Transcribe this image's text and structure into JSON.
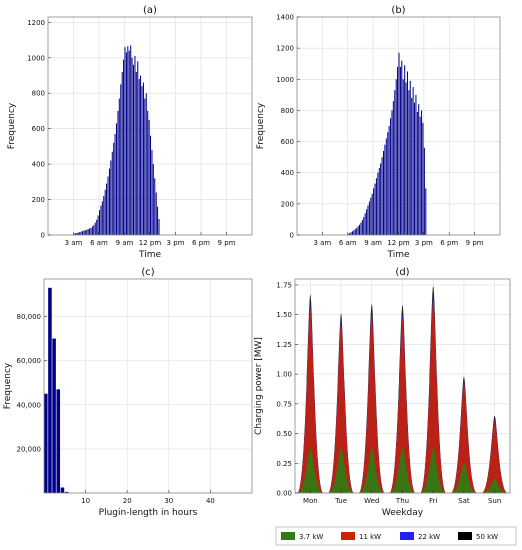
{
  "chart_data": [
    {
      "id": "a",
      "type": "bar",
      "title": "(a)",
      "xlabel": "Time",
      "ylabel": "Frequency",
      "ylim": [
        0,
        1230
      ],
      "yticks": [
        0,
        200,
        400,
        600,
        800,
        1000,
        1200
      ],
      "xlim": [
        0,
        24
      ],
      "xticks": [
        3,
        6,
        9,
        12,
        15,
        18,
        21
      ],
      "xticklabels": [
        "3 am",
        "6 am",
        "9 am",
        "12 pm",
        "3 pm",
        "6 pm",
        "9 pm"
      ],
      "grid": true,
      "bar_color": "#00008b",
      "bin_width_hours": 0.1667,
      "bins": [
        [
          3.0,
          8
        ],
        [
          3.17,
          10
        ],
        [
          3.33,
          12
        ],
        [
          3.5,
          14
        ],
        [
          3.67,
          16
        ],
        [
          3.83,
          19
        ],
        [
          4.0,
          22
        ],
        [
          4.17,
          25
        ],
        [
          4.33,
          27
        ],
        [
          4.5,
          30
        ],
        [
          4.67,
          33
        ],
        [
          4.83,
          37
        ],
        [
          5.0,
          40
        ],
        [
          5.17,
          48
        ],
        [
          5.33,
          56
        ],
        [
          5.5,
          70
        ],
        [
          5.67,
          86
        ],
        [
          5.83,
          110
        ],
        [
          6.0,
          140
        ],
        [
          6.17,
          165
        ],
        [
          6.33,
          190
        ],
        [
          6.5,
          220
        ],
        [
          6.67,
          255
        ],
        [
          6.83,
          290
        ],
        [
          7.0,
          330
        ],
        [
          7.17,
          375
        ],
        [
          7.33,
          420
        ],
        [
          7.5,
          470
        ],
        [
          7.67,
          520
        ],
        [
          7.83,
          570
        ],
        [
          8.0,
          630
        ],
        [
          8.17,
          700
        ],
        [
          8.33,
          770
        ],
        [
          8.5,
          850
        ],
        [
          8.67,
          920
        ],
        [
          8.83,
          990
        ],
        [
          9.0,
          1060
        ],
        [
          9.17,
          1030
        ],
        [
          9.33,
          1065
        ],
        [
          9.5,
          1040
        ],
        [
          9.67,
          1070
        ],
        [
          9.83,
          1000
        ],
        [
          10.0,
          960
        ],
        [
          10.17,
          1010
        ],
        [
          10.33,
          920
        ],
        [
          10.5,
          980
        ],
        [
          10.67,
          880
        ],
        [
          10.83,
          900
        ],
        [
          11.0,
          840
        ],
        [
          11.17,
          860
        ],
        [
          11.33,
          770
        ],
        [
          11.5,
          800
        ],
        [
          11.67,
          700
        ],
        [
          11.83,
          650
        ],
        [
          12.0,
          560
        ],
        [
          12.17,
          480
        ],
        [
          12.33,
          400
        ],
        [
          12.5,
          320
        ],
        [
          12.67,
          240
        ],
        [
          12.83,
          160
        ],
        [
          13.0,
          90
        ]
      ]
    },
    {
      "id": "b",
      "type": "bar",
      "title": "(b)",
      "xlabel": "Time",
      "ylabel": "Frequency",
      "ylim": [
        0,
        1400
      ],
      "yticks": [
        0,
        200,
        400,
        600,
        800,
        1000,
        1200,
        1400
      ],
      "xlim": [
        0,
        24
      ],
      "xticks": [
        3,
        6,
        9,
        12,
        15,
        18,
        21
      ],
      "xticklabels": [
        "3 am",
        "6 am",
        "9 am",
        "12 pm",
        "3 pm",
        "6 pm",
        "9 pm"
      ],
      "grid": true,
      "bar_color": "#00008b",
      "bin_width_hours": 0.1667,
      "bins": [
        [
          6.0,
          8
        ],
        [
          6.17,
          12
        ],
        [
          6.33,
          18
        ],
        [
          6.5,
          24
        ],
        [
          6.67,
          30
        ],
        [
          6.83,
          38
        ],
        [
          7.0,
          46
        ],
        [
          7.17,
          56
        ],
        [
          7.33,
          66
        ],
        [
          7.5,
          80
        ],
        [
          7.67,
          96
        ],
        [
          7.83,
          115
        ],
        [
          8.0,
          140
        ],
        [
          8.17,
          165
        ],
        [
          8.33,
          190
        ],
        [
          8.5,
          215
        ],
        [
          8.67,
          240
        ],
        [
          8.83,
          265
        ],
        [
          9.0,
          300
        ],
        [
          9.17,
          330
        ],
        [
          9.33,
          365
        ],
        [
          9.5,
          400
        ],
        [
          9.67,
          430
        ],
        [
          9.83,
          460
        ],
        [
          10.0,
          500
        ],
        [
          10.17,
          540
        ],
        [
          10.33,
          580
        ],
        [
          10.5,
          620
        ],
        [
          10.67,
          660
        ],
        [
          10.83,
          700
        ],
        [
          11.0,
          750
        ],
        [
          11.17,
          800
        ],
        [
          11.33,
          860
        ],
        [
          11.5,
          930
        ],
        [
          11.67,
          1000
        ],
        [
          11.83,
          1080
        ],
        [
          12.0,
          1170
        ],
        [
          12.17,
          1080
        ],
        [
          12.33,
          1120
        ],
        [
          12.5,
          1000
        ],
        [
          12.67,
          1090
        ],
        [
          12.83,
          980
        ],
        [
          13.0,
          1050
        ],
        [
          13.17,
          930
        ],
        [
          13.33,
          990
        ],
        [
          13.5,
          880
        ],
        [
          13.67,
          950
        ],
        [
          13.83,
          850
        ],
        [
          14.0,
          900
        ],
        [
          14.17,
          790
        ],
        [
          14.33,
          840
        ],
        [
          14.5,
          760
        ],
        [
          14.67,
          800
        ],
        [
          14.83,
          720
        ],
        [
          15.0,
          560
        ],
        [
          15.17,
          300
        ]
      ]
    },
    {
      "id": "c",
      "type": "bar",
      "title": "(c)",
      "xlabel": "Plugin-length in hours",
      "ylabel": "Frequency",
      "ylim": [
        0,
        97000
      ],
      "yticks": [
        20000,
        40000,
        60000,
        80000
      ],
      "yticklabels": [
        "20,000",
        "40,000",
        "60,000",
        "80,000"
      ],
      "xlim": [
        0,
        50
      ],
      "xticks": [
        10,
        20,
        30,
        40
      ],
      "grid": true,
      "bar_color": "#00008b",
      "bins": [
        [
          0,
          1,
          45000
        ],
        [
          1,
          2,
          93000
        ],
        [
          2,
          3,
          70000
        ],
        [
          3,
          4,
          47000
        ],
        [
          4,
          5,
          2500
        ],
        [
          5,
          6,
          500
        ]
      ]
    },
    {
      "id": "d",
      "type": "area",
      "title": "(d)",
      "xlabel": "Weekday",
      "ylabel": "Charging power [MW]",
      "ylim": [
        0,
        1.8
      ],
      "yticks": [
        0.0,
        0.25,
        0.5,
        0.75,
        1.0,
        1.25,
        1.5,
        1.75
      ],
      "yticklabels": [
        "0.00",
        "0.25",
        "0.50",
        "0.75",
        "1.00",
        "1.25",
        "1.50",
        "1.75"
      ],
      "categories": [
        "Mon",
        "Tue",
        "Wed",
        "Thu",
        "Fri",
        "Sat",
        "Sun"
      ],
      "grid": true,
      "series": [
        {
          "name": "3.7 kW",
          "color": "#2e7d12",
          "peaks": [
            0.38,
            0.38,
            0.38,
            0.38,
            0.38,
            0.25,
            0.12
          ]
        },
        {
          "name": "11 kW",
          "color": "#cc2200",
          "peaks": [
            1.55,
            1.42,
            1.48,
            1.47,
            1.62,
            0.92,
            0.6
          ]
        },
        {
          "name": "22 kW",
          "color": "#2222ff",
          "peaks": [
            1.58,
            1.45,
            1.5,
            1.5,
            1.65,
            0.94,
            0.61
          ]
        },
        {
          "name": "50 kW",
          "color": "#000000",
          "peaks": [
            1.67,
            1.51,
            1.59,
            1.58,
            1.74,
            0.98,
            0.65
          ]
        }
      ],
      "legend": "bottom-right"
    }
  ]
}
